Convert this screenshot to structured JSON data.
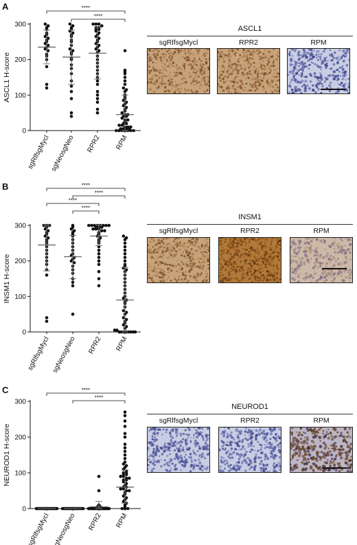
{
  "panels": [
    {
      "letter": "A",
      "ylabel": "ASCL1 H-score",
      "micro_title": "ASCL1",
      "micro_labels": [
        "sgRlfsgMycl",
        "RPR2",
        "RPM"
      ],
      "micro_images": [
        "brown-dense",
        "brown-dense",
        "blue-nuclei"
      ]
    },
    {
      "letter": "B",
      "ylabel": "INSM1 H-score",
      "micro_title": "INSM1",
      "micro_labels": [
        "sgRlfsgMycl",
        "RPR2",
        "RPM"
      ],
      "micro_images": [
        "brown-dense",
        "brown-strong",
        "brown-light"
      ]
    },
    {
      "letter": "C",
      "ylabel": "NEUROD1 H-score",
      "micro_title": "NEUROD1",
      "micro_labels": [
        "sgRlfsgMycl",
        "RPR2",
        "RPM"
      ],
      "micro_images": [
        "blue-nuclei",
        "blue-nuclei",
        "brown-nuclei"
      ]
    }
  ],
  "chart_data": [
    {
      "type": "scatter",
      "ylabel": "ASCL1 H-score",
      "ylim": [
        0,
        300
      ],
      "yticks": [
        "0",
        "100",
        "200",
        "300"
      ],
      "categories": [
        "sgRlfsgMycl",
        "sgNeosgNeo",
        "RPR2",
        "RPM"
      ],
      "significance": [
        {
          "from": 0,
          "to": 3,
          "label": "****"
        },
        {
          "from": 1,
          "to": 3,
          "label": "****"
        }
      ],
      "groups": [
        {
          "name": "sgRlfsgMycl",
          "mean": 235,
          "sd_low": 188,
          "sd_high": 283,
          "values": [
            300,
            295,
            290,
            285,
            275,
            270,
            265,
            260,
            255,
            250,
            245,
            240,
            235,
            230,
            225,
            215,
            210,
            200,
            180,
            130,
            120
          ]
        },
        {
          "name": "sgNeosgNeo",
          "mean": 207,
          "sd_low": 130,
          "sd_high": 283,
          "values": [
            300,
            295,
            290,
            285,
            280,
            275,
            270,
            265,
            255,
            250,
            240,
            230,
            225,
            220,
            215,
            205,
            200,
            185,
            175,
            160,
            140,
            125,
            110,
            90,
            50,
            40
          ]
        },
        {
          "name": "RPR2",
          "mean": 218,
          "sd_low": 145,
          "sd_high": 290,
          "values": [
            300,
            300,
            300,
            295,
            290,
            290,
            285,
            285,
            280,
            275,
            270,
            265,
            260,
            255,
            250,
            245,
            240,
            235,
            230,
            225,
            220,
            210,
            200,
            190,
            180,
            170,
            160,
            150,
            140,
            130,
            110,
            100,
            90,
            80,
            60,
            50
          ]
        },
        {
          "name": "RPM",
          "mean": 45,
          "sd_low": 0,
          "sd_high": 100,
          "values": [
            225,
            170,
            165,
            160,
            150,
            140,
            130,
            120,
            115,
            110,
            100,
            95,
            90,
            85,
            80,
            75,
            70,
            65,
            60,
            55,
            50,
            45,
            45,
            40,
            40,
            35,
            30,
            30,
            25,
            20,
            20,
            15,
            15,
            10,
            10,
            10,
            5,
            5,
            5,
            5,
            0,
            0,
            0,
            0,
            0,
            0,
            0
          ]
        }
      ]
    },
    {
      "type": "scatter",
      "ylabel": "INSM1 H-score",
      "ylim": [
        0,
        300
      ],
      "yticks": [
        "0",
        "100",
        "200",
        "300"
      ],
      "categories": [
        "sgRlfsgMycl",
        "sgNeosgNeo",
        "RPR2",
        "RPM"
      ],
      "significance": [
        {
          "from": 0,
          "to": 3,
          "label": "****"
        },
        {
          "from": 1,
          "to": 3,
          "label": "****"
        },
        {
          "from": 0,
          "to": 2,
          "label": "****"
        },
        {
          "from": 1,
          "to": 2,
          "label": "****"
        }
      ],
      "groups": [
        {
          "name": "sgRlfsgMycl",
          "mean": 245,
          "sd_low": 172,
          "sd_high": 300,
          "values": [
            300,
            300,
            300,
            295,
            290,
            285,
            280,
            275,
            270,
            265,
            260,
            255,
            250,
            240,
            230,
            220,
            210,
            200,
            190,
            175,
            160,
            40,
            30
          ]
        },
        {
          "name": "sgNeosgNeo",
          "mean": 212,
          "sd_low": 150,
          "sd_high": 272,
          "values": [
            300,
            295,
            290,
            285,
            280,
            275,
            270,
            260,
            250,
            240,
            230,
            220,
            215,
            210,
            205,
            200,
            195,
            185,
            175,
            165,
            150,
            140,
            130,
            50
          ]
        },
        {
          "name": "RPR2",
          "mean": 270,
          "sd_low": 243,
          "sd_high": 300,
          "values": [
            300,
            300,
            300,
            300,
            300,
            300,
            300,
            300,
            295,
            295,
            295,
            290,
            290,
            290,
            285,
            285,
            280,
            275,
            270,
            265,
            260,
            255,
            250,
            240,
            230,
            220,
            210,
            200,
            190,
            170,
            150,
            130
          ]
        },
        {
          "name": "RPM",
          "mean": 90,
          "sd_low": 0,
          "sd_high": 182,
          "values": [
            270,
            265,
            260,
            250,
            240,
            230,
            220,
            210,
            200,
            190,
            185,
            180,
            175,
            170,
            160,
            150,
            140,
            130,
            120,
            110,
            100,
            95,
            90,
            85,
            80,
            70,
            60,
            55,
            50,
            40,
            35,
            30,
            25,
            20,
            15,
            10,
            5,
            5,
            0,
            0,
            0,
            0,
            0,
            0,
            0,
            0
          ]
        }
      ]
    },
    {
      "type": "scatter",
      "ylabel": "NEUROD1 H-score",
      "ylim": [
        0,
        300
      ],
      "yticks": [
        "0",
        "100",
        "200",
        "300"
      ],
      "categories": [
        "sgRlfsgMycl",
        "sgNeosgNeo",
        "RPR2",
        "RPM"
      ],
      "significance": [
        {
          "from": 0,
          "to": 3,
          "label": "****"
        },
        {
          "from": 1,
          "to": 3,
          "label": "****"
        }
      ],
      "groups": [
        {
          "name": "sgRlfsgMycl",
          "mean": 0,
          "sd_low": 0,
          "sd_high": 0,
          "values": [
            0,
            0,
            0,
            0,
            0,
            0,
            0,
            0,
            0,
            0,
            0,
            0,
            0,
            0,
            0,
            0,
            0,
            0,
            0,
            0,
            0,
            0
          ]
        },
        {
          "name": "sgNeosgNeo",
          "mean": 0,
          "sd_low": 0,
          "sd_high": 0,
          "values": [
            0,
            0,
            0,
            0,
            0,
            0,
            0,
            0,
            0,
            0,
            0,
            0,
            0,
            0,
            0,
            0,
            0,
            0,
            0,
            0,
            0,
            0
          ]
        },
        {
          "name": "RPR2",
          "mean": 5,
          "sd_low": 0,
          "sd_high": 20,
          "values": [
            90,
            50,
            10,
            5,
            5,
            0,
            0,
            0,
            0,
            0,
            0,
            0,
            0,
            0,
            0,
            0,
            0,
            0,
            0,
            0,
            0,
            0,
            0,
            0,
            0,
            0,
            0,
            0,
            0,
            0
          ]
        },
        {
          "name": "RPM",
          "mean": 60,
          "sd_low": 15,
          "sd_high": 108,
          "values": [
            270,
            260,
            245,
            230,
            210,
            200,
            180,
            170,
            160,
            150,
            140,
            130,
            125,
            120,
            115,
            110,
            105,
            100,
            100,
            95,
            95,
            90,
            90,
            85,
            85,
            80,
            80,
            75,
            70,
            65,
            60,
            60,
            55,
            55,
            50,
            50,
            45,
            40,
            35,
            30,
            25,
            20,
            15,
            10,
            5,
            0,
            0,
            0
          ]
        }
      ]
    }
  ]
}
